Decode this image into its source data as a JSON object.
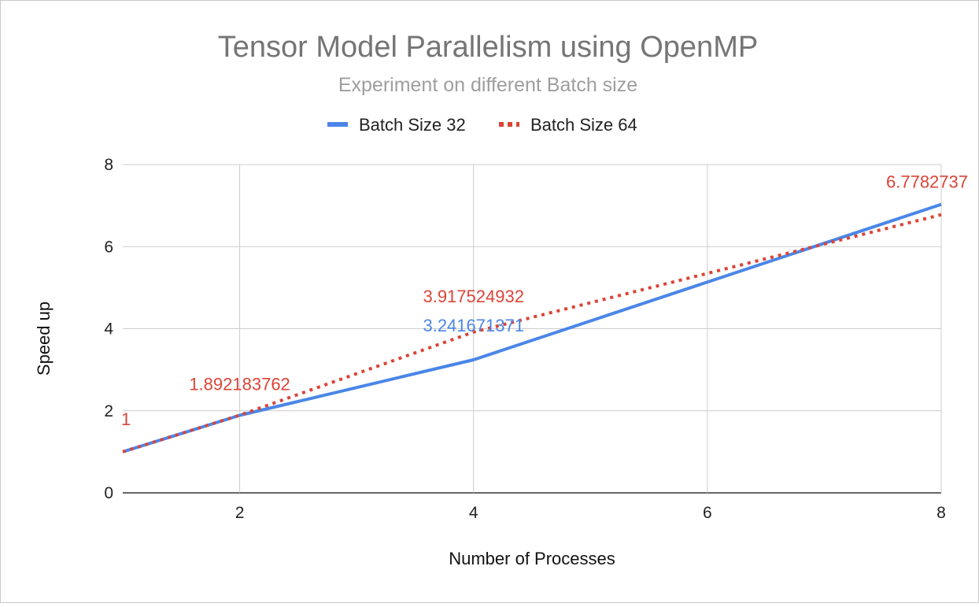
{
  "chart_data": {
    "type": "line",
    "title": "Tensor Model Parallelism using OpenMP",
    "subtitle": "Experiment on different Batch size",
    "xlabel": "Number of Processes",
    "ylabel": "Speed up",
    "xlim": [
      1,
      8
    ],
    "ylim": [
      0,
      8
    ],
    "x_ticks": [
      2,
      4,
      6,
      8
    ],
    "y_ticks": [
      0,
      2,
      4,
      6,
      8
    ],
    "grid": true,
    "legend_position": "top",
    "series": [
      {
        "name": "Batch Size 32",
        "color": "#4a86e8",
        "style": "solid",
        "x": [
          1,
          2,
          4,
          8
        ],
        "y": [
          1,
          1.89,
          3.241671371,
          7.03
        ],
        "labels": [
          {
            "x": 4,
            "y": 3.241671371,
            "text": "3.241671371"
          }
        ]
      },
      {
        "name": "Batch Size 64",
        "color": "#db4437",
        "style": "dotted",
        "x": [
          1,
          2,
          4,
          8
        ],
        "y": [
          1,
          1.892183762,
          3.917524932,
          6.778273706
        ],
        "labels": [
          {
            "x": 1,
            "y": 1,
            "text": "1"
          },
          {
            "x": 2,
            "y": 1.892183762,
            "text": "1.892183762"
          },
          {
            "x": 4,
            "y": 3.917524932,
            "text": "3.917524932"
          },
          {
            "x": 8,
            "y": 6.778273706,
            "text": "6.7782737"
          }
        ]
      }
    ]
  }
}
